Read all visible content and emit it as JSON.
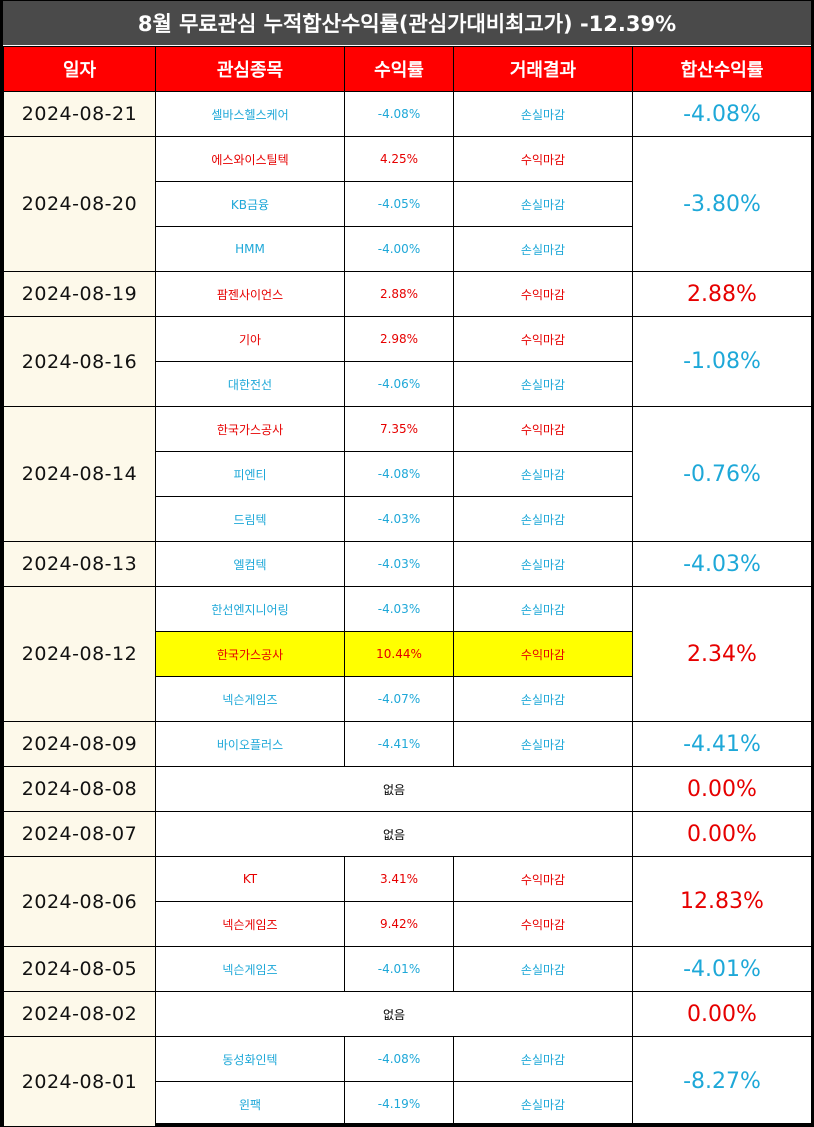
{
  "title": "8월 무료관심 누적합산수익률(관심가대비최고가) -12.39%",
  "headers": [
    "일자",
    "관심종목",
    "수익률",
    "거래결과",
    "합산수익률"
  ],
  "colors": {
    "header_bg": "#ff0000",
    "title_bg": "#4a4a4a",
    "gain": "#e60000",
    "loss": "#1ea8d8",
    "highlight": "#ffff00",
    "date_bg": "#fdf9ea"
  },
  "groups": [
    {
      "date": "2024-08-21",
      "total": "-4.08%",
      "total_dir": "down",
      "rows": [
        {
          "stock": "셀바스헬스케어",
          "return": "-4.08%",
          "result": "손실마감",
          "dir": "down"
        }
      ]
    },
    {
      "date": "2024-08-20",
      "total": "-3.80%",
      "total_dir": "down",
      "rows": [
        {
          "stock": "에스와이스틸텍",
          "return": "4.25%",
          "result": "수익마감",
          "dir": "up"
        },
        {
          "stock": "KB금융",
          "return": "-4.05%",
          "result": "손실마감",
          "dir": "down"
        },
        {
          "stock": "HMM",
          "return": "-4.00%",
          "result": "손실마감",
          "dir": "down"
        }
      ]
    },
    {
      "date": "2024-08-19",
      "total": "2.88%",
      "total_dir": "up",
      "rows": [
        {
          "stock": "팜젠사이언스",
          "return": "2.88%",
          "result": "수익마감",
          "dir": "up"
        }
      ]
    },
    {
      "date": "2024-08-16",
      "total": "-1.08%",
      "total_dir": "down",
      "rows": [
        {
          "stock": "기아",
          "return": "2.98%",
          "result": "수익마감",
          "dir": "up"
        },
        {
          "stock": "대한전선",
          "return": "-4.06%",
          "result": "손실마감",
          "dir": "down"
        }
      ]
    },
    {
      "date": "2024-08-14",
      "total": "-0.76%",
      "total_dir": "down",
      "rows": [
        {
          "stock": "한국가스공사",
          "return": "7.35%",
          "result": "수익마감",
          "dir": "up"
        },
        {
          "stock": "피엔티",
          "return": "-4.08%",
          "result": "손실마감",
          "dir": "down"
        },
        {
          "stock": "드림텍",
          "return": "-4.03%",
          "result": "손실마감",
          "dir": "down"
        }
      ]
    },
    {
      "date": "2024-08-13",
      "total": "-4.03%",
      "total_dir": "down",
      "rows": [
        {
          "stock": "엘컴텍",
          "return": "-4.03%",
          "result": "손실마감",
          "dir": "down"
        }
      ]
    },
    {
      "date": "2024-08-12",
      "total": "2.34%",
      "total_dir": "up",
      "rows": [
        {
          "stock": "한선엔지니어링",
          "return": "-4.03%",
          "result": "손실마감",
          "dir": "down"
        },
        {
          "stock": "한국가스공사",
          "return": "10.44%",
          "result": "수익마감",
          "dir": "up",
          "highlight": true
        },
        {
          "stock": "넥슨게임즈",
          "return": "-4.07%",
          "result": "손실마감",
          "dir": "down"
        }
      ]
    },
    {
      "date": "2024-08-09",
      "total": "-4.41%",
      "total_dir": "down",
      "rows": [
        {
          "stock": "바이오플러스",
          "return": "-4.41%",
          "result": "손실마감",
          "dir": "down"
        }
      ]
    },
    {
      "date": "2024-08-08",
      "total": "0.00%",
      "total_dir": "up",
      "none_text": "없음"
    },
    {
      "date": "2024-08-07",
      "total": "0.00%",
      "total_dir": "up",
      "none_text": "없음"
    },
    {
      "date": "2024-08-06",
      "total": "12.83%",
      "total_dir": "up",
      "rows": [
        {
          "stock": "KT",
          "return": "3.41%",
          "result": "수익마감",
          "dir": "up"
        },
        {
          "stock": "넥슨게임즈",
          "return": "9.42%",
          "result": "수익마감",
          "dir": "up"
        }
      ]
    },
    {
      "date": "2024-08-05",
      "total": "-4.01%",
      "total_dir": "down",
      "rows": [
        {
          "stock": "넥슨게임즈",
          "return": "-4.01%",
          "result": "손실마감",
          "dir": "down"
        }
      ]
    },
    {
      "date": "2024-08-02",
      "total": "0.00%",
      "total_dir": "up",
      "none_text": "없음"
    },
    {
      "date": "2024-08-01",
      "total": "-8.27%",
      "total_dir": "down",
      "rows": [
        {
          "stock": "동성화인텍",
          "return": "-4.08%",
          "result": "손실마감",
          "dir": "down"
        },
        {
          "stock": "윈팩",
          "return": "-4.19%",
          "result": "손실마감",
          "dir": "down"
        }
      ]
    }
  ]
}
